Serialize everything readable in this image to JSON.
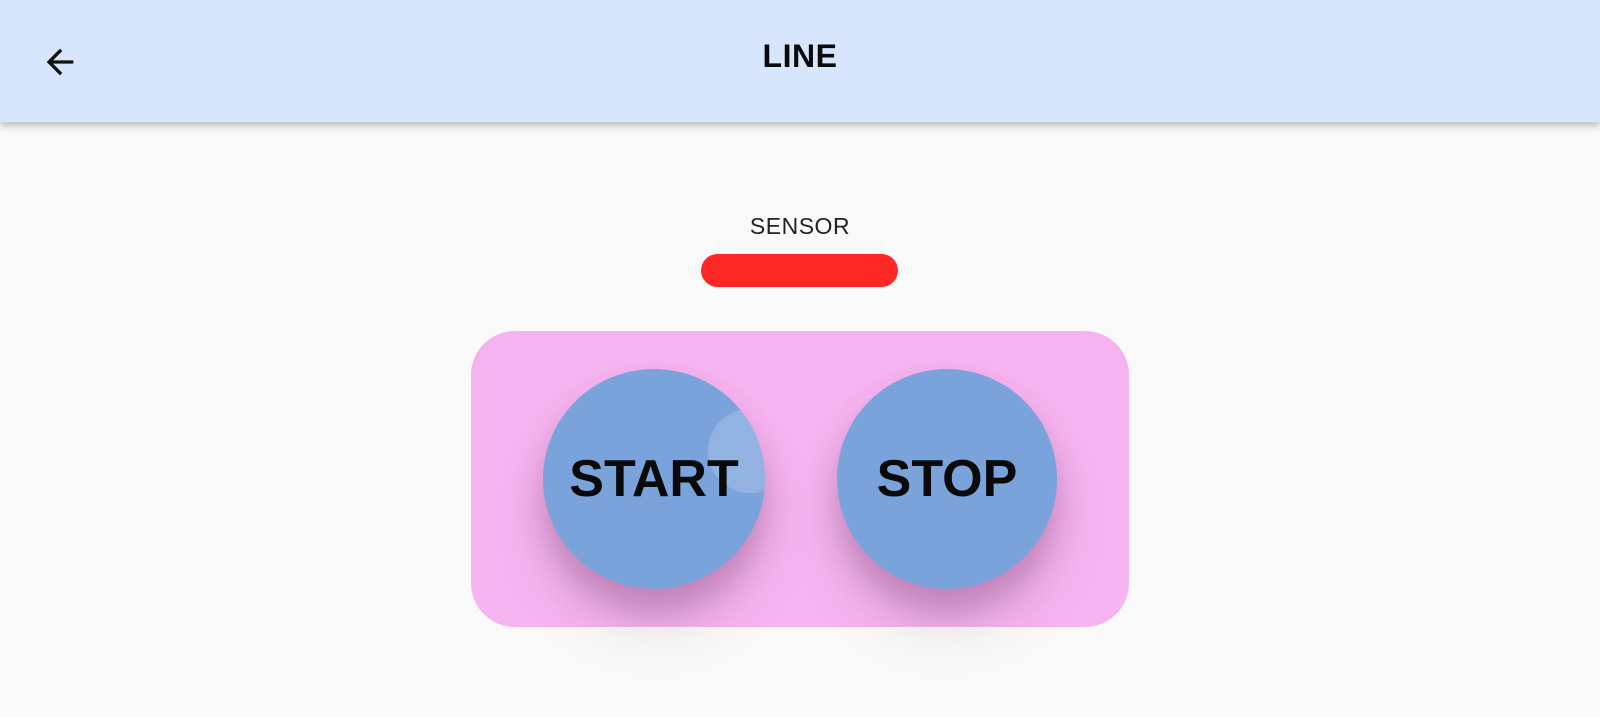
{
  "header": {
    "title": "LINE",
    "back_icon": "arrow-left-icon"
  },
  "sensor": {
    "label": "SENSOR",
    "status_color": "#ff2626"
  },
  "controls": {
    "panel_color": "#f5b3ef",
    "button_color": "#7ba3db",
    "start_label": "START",
    "stop_label": "STOP"
  },
  "colors": {
    "app_bar": "#d7e6fd",
    "background": "#f9f9f9"
  }
}
